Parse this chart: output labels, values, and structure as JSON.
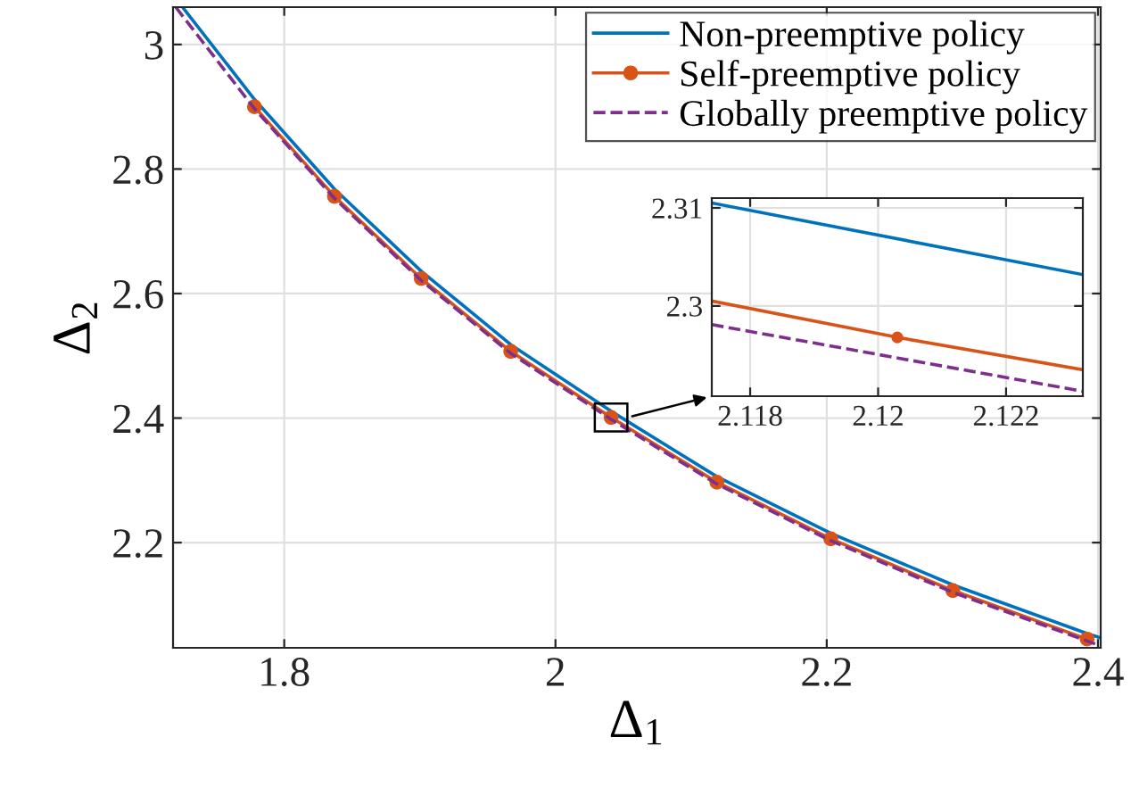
{
  "chart_data": [
    {
      "type": "line",
      "xlabel": "Δ$_{1}$",
      "ylabel": "Δ$_{2}$",
      "xlim": [
        1.718,
        2.402
      ],
      "ylim": [
        2.031,
        3.06
      ],
      "xticks": [
        1.8,
        2,
        2.2,
        2.4
      ],
      "yticks": [
        2.2,
        2.4,
        2.6,
        2.8,
        3
      ],
      "grid": true,
      "legend": "top right",
      "series": [
        {
          "name": "Non-preemptive policy",
          "color": "#0072bd",
          "line_style": "solid",
          "marker": "none",
          "x": [
            1.725,
            1.778,
            1.837,
            1.901,
            1.967,
            2.041,
            2.119,
            2.203,
            2.293,
            2.392,
            2.402
          ],
          "values": [
            3.06,
            2.912,
            2.768,
            2.636,
            2.518,
            2.411,
            2.306,
            2.215,
            2.132,
            2.054,
            2.047
          ]
        },
        {
          "name": "Self-preemptive policy",
          "color": "#d95319",
          "line_style": "solid",
          "marker": "circle",
          "x": [
            1.778,
            1.837,
            1.901,
            1.967,
            2.041,
            2.119,
            2.203,
            2.293,
            2.392
          ],
          "values": [
            2.9,
            2.756,
            2.624,
            2.507,
            2.401,
            2.297,
            2.206,
            2.123,
            2.045
          ]
        },
        {
          "name": "Globally preemptive policy",
          "color": "#7e2f8e",
          "line_style": "dashed",
          "marker": "none",
          "x": [
            1.72,
            1.778,
            1.837,
            1.901,
            1.967,
            2.041,
            2.119,
            2.203,
            2.293,
            2.392,
            2.402
          ],
          "values": [
            3.06,
            2.897,
            2.753,
            2.621,
            2.504,
            2.398,
            2.294,
            2.203,
            2.12,
            2.042,
            2.034
          ]
        }
      ]
    },
    {
      "type": "line",
      "xlim": [
        2.1174,
        2.1232
      ],
      "ylim": [
        2.2908,
        2.311
      ],
      "xticks": [
        2.118,
        2.12,
        2.122
      ],
      "yticks": [
        2.3,
        2.31
      ],
      "grid": true,
      "series": [
        {
          "color": "#0072bd",
          "line_style": "solid",
          "marker": "none",
          "x": [
            2.1174,
            2.1232
          ],
          "values": [
            2.3105,
            2.3032
          ]
        },
        {
          "color": "#d95319",
          "line_style": "solid",
          "marker": "none",
          "x": [
            2.1174,
            2.1203,
            2.1232
          ],
          "values": [
            2.3005,
            2.2968,
            2.2935
          ]
        },
        {
          "type": "scatter",
          "color": "#d95319",
          "marker": "circle",
          "x": [
            2.1203
          ],
          "values": [
            2.2968
          ]
        },
        {
          "color": "#7e2f8e",
          "line_style": "dashed",
          "marker": "none",
          "x": [
            2.1174,
            2.1232
          ],
          "values": [
            2.2981,
            2.2913
          ]
        }
      ]
    }
  ]
}
